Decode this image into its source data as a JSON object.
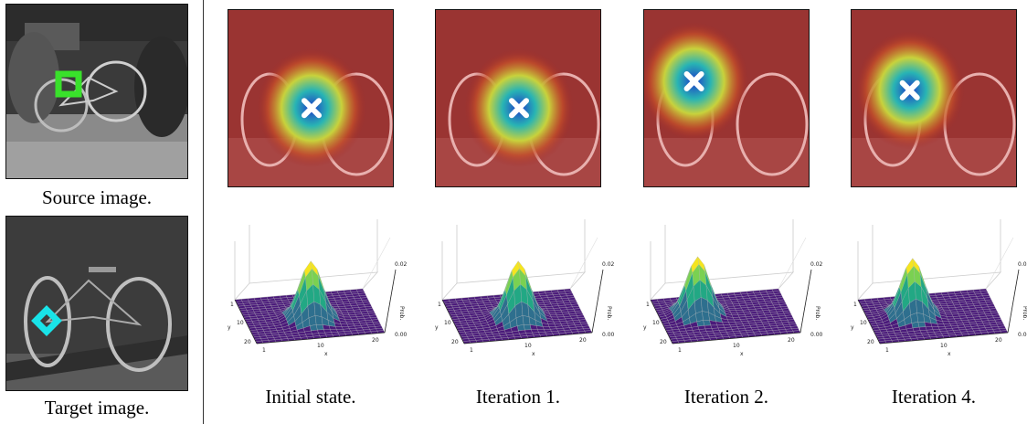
{
  "left_panel": {
    "source_caption": "Source image.",
    "target_caption": "Target image."
  },
  "columns": [
    {
      "caption": "Initial state.",
      "peak": [
        10,
        11
      ]
    },
    {
      "caption": "Iteration 1.",
      "peak": [
        10,
        11
      ]
    },
    {
      "caption": "Iteration 2.",
      "peak": [
        6,
        8
      ]
    },
    {
      "caption": "Iteration 4.",
      "peak": [
        7,
        9
      ]
    }
  ],
  "plot_axes": {
    "x_label": "x",
    "y_label": "y",
    "z_label": "Prob.",
    "x_ticks": [
      "1",
      "10",
      "20"
    ],
    "y_ticks": [
      "1",
      "10",
      "20"
    ],
    "z_ticks": [
      "0.02",
      "0.00"
    ],
    "z_range": [
      0,
      0.02
    ]
  },
  "colors": {
    "source_marker": "#39e12b",
    "target_marker": "#19e3e8",
    "surface_low": "#3b0f70",
    "surface_high": "#f5e51f"
  }
}
